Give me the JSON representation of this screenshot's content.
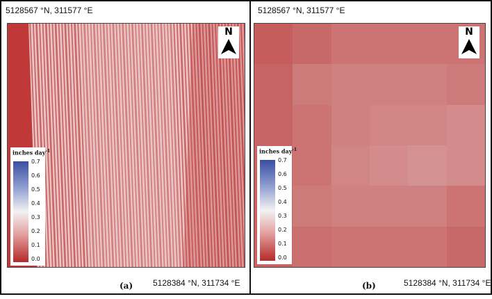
{
  "panels": [
    {
      "id": "a",
      "label": "(a)",
      "top_left_coord": "5128567 °N, 311577 °E",
      "bottom_right_coord": "5128384 °N, 311734 °E",
      "north_label": "N"
    },
    {
      "id": "b",
      "label": "(b)",
      "top_left_coord": "5128567 °N, 311577 °E",
      "bottom_right_coord": "5128384 °N, 311734 °E",
      "north_label": "N"
    }
  ],
  "legend": {
    "units_prefix": "inches day",
    "units_exponent": "-1",
    "ticks": [
      "0.7",
      "0.6",
      "0.5",
      "0.4",
      "0.3",
      "0.2",
      "0.1",
      "0.0"
    ],
    "range": [
      0.0,
      0.7
    ],
    "colors": {
      "high": "#3a4ea2",
      "mid": "#f2f2f2",
      "low": "#b52a2a"
    }
  },
  "panel_b_grid": {
    "rows": 6,
    "cols": 6,
    "values": [
      [
        0.09,
        0.11,
        0.13,
        0.13,
        0.13,
        0.13
      ],
      [
        0.1,
        0.14,
        0.15,
        0.15,
        0.15,
        0.14
      ],
      [
        0.1,
        0.13,
        0.15,
        0.16,
        0.16,
        0.17
      ],
      [
        0.1,
        0.13,
        0.16,
        0.17,
        0.18,
        0.17
      ],
      [
        0.1,
        0.14,
        0.15,
        0.15,
        0.15,
        0.13
      ],
      [
        0.1,
        0.12,
        0.13,
        0.13,
        0.13,
        0.11
      ]
    ]
  }
}
